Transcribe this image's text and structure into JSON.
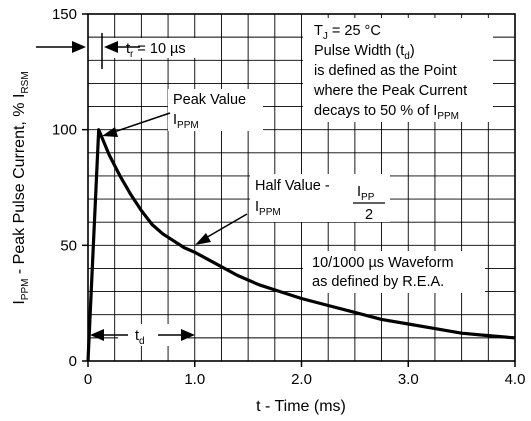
{
  "chart_data": {
    "type": "line",
    "title": "",
    "xlabel": "t - Time (ms)",
    "ylabel": {
      "main": "I",
      "sub1": "PPM",
      "mid": " - Peak Pulse Current, % I",
      "sub2": "RSM"
    },
    "xlim": [
      0,
      4.0
    ],
    "ylim": [
      0,
      150
    ],
    "x_ticks": [
      0,
      1.0,
      2.0,
      3.0,
      4.0
    ],
    "x_tick_labels": [
      "0",
      "1.0",
      "2.0",
      "3.0",
      "4.0"
    ],
    "y_ticks": [
      0,
      50,
      100,
      150
    ],
    "y_tick_labels": [
      "0",
      "50",
      "100",
      "150"
    ],
    "grid": {
      "x_step": 0.25,
      "y_step": 10
    },
    "series": [
      {
        "x": [
          0,
          0.1,
          0.2,
          0.3,
          0.4,
          0.5,
          0.6,
          0.7,
          0.8,
          0.9,
          1.0,
          1.2,
          1.4,
          1.6,
          1.8,
          2.0,
          2.25,
          2.5,
          2.75,
          3.0,
          3.25,
          3.5,
          3.75,
          4.0
        ],
        "y": [
          0,
          100,
          89,
          80,
          72,
          65,
          59,
          55,
          52,
          49,
          47,
          42,
          37,
          33,
          30,
          27,
          24,
          21,
          18,
          16,
          14,
          12,
          11,
          10
        ]
      }
    ],
    "annotations": {
      "tr": {
        "pre": "t",
        "sub": "r",
        "post": " = 10 µs"
      },
      "tj": {
        "pre": "T",
        "sub": "J",
        "post": " = 25 °C"
      },
      "pulse_width": {
        "pre": "Pulse Width (t",
        "sub": "d",
        "post": ")"
      },
      "defined_line1": "is defined as the Point",
      "defined_line2": "where the Peak Current",
      "decays": {
        "pre": "decays to 50 % of I",
        "sub": "PPM"
      },
      "peak_value": "Peak Value",
      "peak_ippm": {
        "pre": "I",
        "sub": "PPM"
      },
      "half_value": "Half Value -",
      "half_ippm": {
        "pre": "I",
        "sub": "PPM"
      },
      "half_frac_num": {
        "pre": "I",
        "sub": "PP"
      },
      "half_frac_den": "2",
      "waveform_line1": "10/1000 µs Waveform",
      "waveform_line2": "as defined by R.E.A.",
      "td": {
        "pre": "t",
        "sub": "d"
      }
    }
  }
}
